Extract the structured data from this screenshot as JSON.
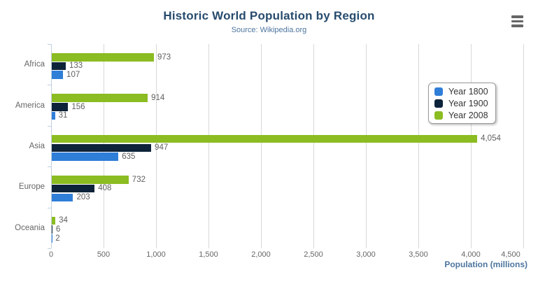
{
  "chart_data": {
    "type": "bar",
    "orientation": "horizontal",
    "title": "Historic World Population by Region",
    "subtitle": "Source: Wikipedia.org",
    "categories": [
      "Africa",
      "America",
      "Asia",
      "Europe",
      "Oceania"
    ],
    "series": [
      {
        "name": "Year 1800",
        "color": "#2f7ed8",
        "values": [
          107,
          31,
          635,
          203,
          2
        ]
      },
      {
        "name": "Year 1900",
        "color": "#0d233a",
        "values": [
          133,
          156,
          947,
          408,
          6
        ]
      },
      {
        "name": "Year 2008",
        "color": "#8bbc21",
        "values": [
          973,
          914,
          4054,
          732,
          34
        ]
      }
    ],
    "bar_order_top_to_bottom": [
      "Year 2008",
      "Year 1900",
      "Year 1800"
    ],
    "data_labels": {
      "Year 1800": [
        "107",
        "31",
        "635",
        "203",
        "2"
      ],
      "Year 1900": [
        "133",
        "156",
        "947",
        "408",
        "6"
      ],
      "Year 2008": [
        "973",
        "914",
        "4,054",
        "732",
        "34"
      ]
    },
    "xlabel": "Population (millions)",
    "xlim": [
      0,
      4500
    ],
    "x_tick_interval": 500,
    "x_tick_labels": [
      "0",
      "500",
      "1,000",
      "1,500",
      "2,000",
      "2,500",
      "3,000",
      "3,500",
      "4,000",
      "4,500"
    ],
    "grid": true,
    "legend": {
      "position": "inside-right",
      "items": [
        "Year 1800",
        "Year 1900",
        "Year 2008"
      ]
    },
    "colors": {
      "background": "#ffffff",
      "title": "#274b6d",
      "subtitle": "#4d759e",
      "axis_title": "#4d759e",
      "axis_labels": "#666666",
      "data_labels": "#606060",
      "grid_line": "#d8d8d8",
      "category_axis_line": "#c0d0e0",
      "legend_text": "#333333",
      "menu_icon": "#666666"
    }
  },
  "icons": {
    "context_menu": "hamburger-icon"
  }
}
